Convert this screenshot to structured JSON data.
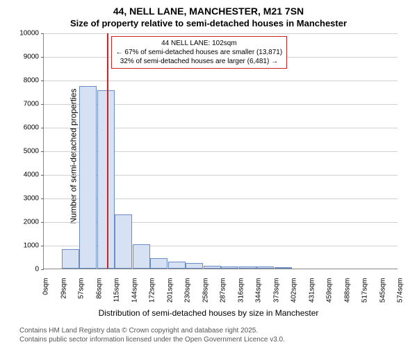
{
  "title": "44, NELL LANE, MANCHESTER, M21 7SN",
  "subtitle": "Size of property relative to semi-detached houses in Manchester",
  "ylabel": "Number of semi-detached properties",
  "xlabel": "Distribution of semi-detached houses by size in Manchester",
  "chart": {
    "type": "histogram",
    "bar_color": "#d6e1f4",
    "bar_border_color": "#6a8bc4",
    "background_color": "#ffffff",
    "grid_color": "#d0d0d0",
    "marker_line_color": "#cc2222",
    "annotation_border_color": "#cc2222",
    "ylim": [
      0,
      10000
    ],
    "ytick_step": 1000,
    "yticks": [
      0,
      1000,
      2000,
      3000,
      4000,
      5000,
      6000,
      7000,
      8000,
      9000,
      10000
    ],
    "xtick_labels": [
      "0sqm",
      "29sqm",
      "57sqm",
      "86sqm",
      "115sqm",
      "144sqm",
      "172sqm",
      "201sqm",
      "230sqm",
      "258sqm",
      "287sqm",
      "316sqm",
      "344sqm",
      "373sqm",
      "402sqm",
      "431sqm",
      "459sqm",
      "488sqm",
      "517sqm",
      "545sqm",
      "574sqm"
    ],
    "bars": [
      {
        "x_bin_start": 0,
        "value": 0
      },
      {
        "x_bin_start": 29,
        "value": 830
      },
      {
        "x_bin_start": 57,
        "value": 7750
      },
      {
        "x_bin_start": 86,
        "value": 7550
      },
      {
        "x_bin_start": 115,
        "value": 2280
      },
      {
        "x_bin_start": 144,
        "value": 1020
      },
      {
        "x_bin_start": 172,
        "value": 430
      },
      {
        "x_bin_start": 201,
        "value": 300
      },
      {
        "x_bin_start": 230,
        "value": 240
      },
      {
        "x_bin_start": 258,
        "value": 120
      },
      {
        "x_bin_start": 287,
        "value": 100
      },
      {
        "x_bin_start": 316,
        "value": 100
      },
      {
        "x_bin_start": 344,
        "value": 100
      },
      {
        "x_bin_start": 373,
        "value": 30
      },
      {
        "x_bin_start": 402,
        "value": 0
      },
      {
        "x_bin_start": 431,
        "value": 0
      },
      {
        "x_bin_start": 459,
        "value": 0
      },
      {
        "x_bin_start": 488,
        "value": 0
      },
      {
        "x_bin_start": 517,
        "value": 0
      },
      {
        "x_bin_start": 545,
        "value": 0
      }
    ],
    "x_max": 574,
    "marker_x_value": 102,
    "annotation": {
      "line1": "44 NELL LANE: 102sqm",
      "line2": "← 67% of semi-detached houses are smaller (13,871)",
      "line3": "32% of semi-detached houses are larger (6,481) →"
    }
  },
  "footer": {
    "line1": "Contains HM Land Registry data © Crown copyright and database right 2025.",
    "line2": "Contains public sector information licensed under the Open Government Licence v3.0."
  }
}
